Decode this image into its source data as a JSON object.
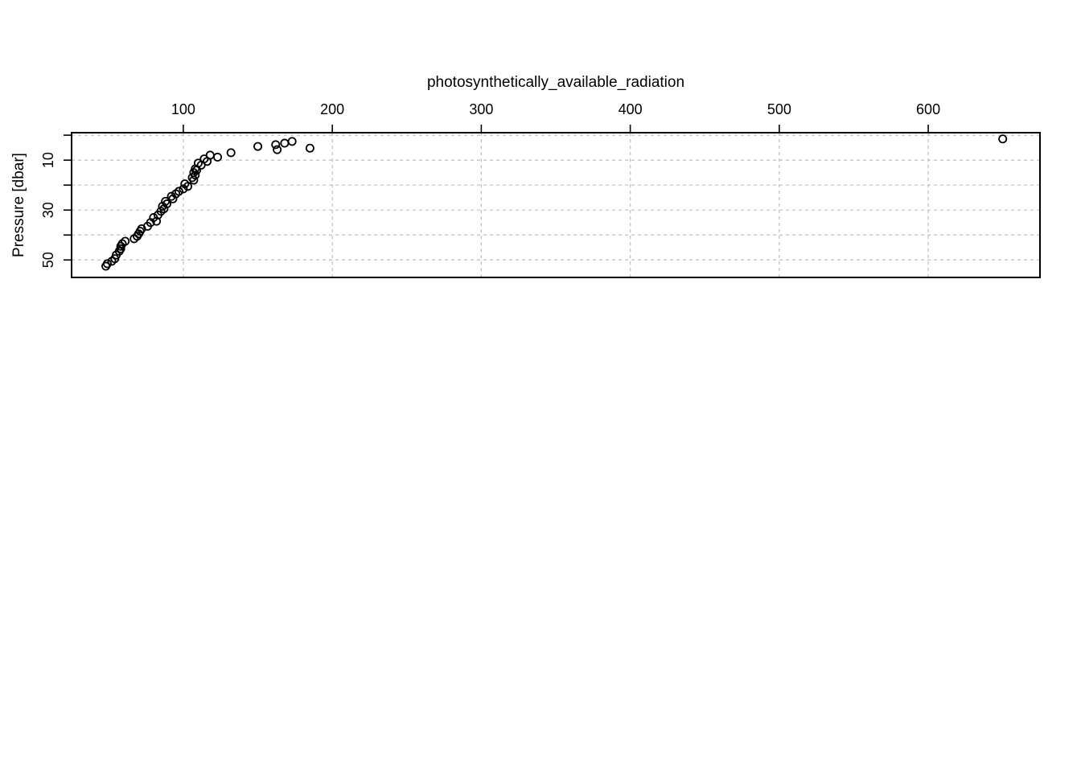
{
  "chart_data": {
    "type": "scatter",
    "title": "",
    "xlabel": "photosynthetically_available_radiation",
    "ylabel": "Pressure [dbar]",
    "x_axis_position": "top",
    "y_axis_inverted": true,
    "xlim": [
      25,
      675
    ],
    "ylim": [
      57,
      -1
    ],
    "x_ticks": [
      100,
      200,
      300,
      400,
      500,
      600
    ],
    "y_ticks": [
      10,
      30,
      50
    ],
    "x_grid": [
      100,
      200,
      300,
      400,
      500,
      600
    ],
    "y_grid": [
      0,
      10,
      20,
      30,
      40,
      50
    ],
    "grid": true,
    "marker": "open-circle",
    "x": [
      650,
      173,
      168,
      162,
      150,
      185,
      163,
      132,
      118,
      123,
      114,
      116,
      110,
      112,
      108,
      109,
      107,
      108,
      106,
      107,
      101,
      103,
      100,
      97,
      95,
      92,
      93,
      88,
      89,
      86,
      87,
      85,
      83,
      80,
      82,
      78,
      76,
      72,
      71,
      70,
      69,
      67,
      61,
      59,
      58,
      58,
      57,
      55,
      54,
      52,
      49,
      48
    ],
    "y": [
      1.5,
      2.5,
      3.2,
      3.8,
      4.5,
      5.2,
      5.8,
      7.0,
      8.0,
      8.8,
      9.5,
      10.5,
      11.2,
      12.0,
      13.5,
      14.0,
      15.0,
      16.0,
      17.0,
      18.0,
      19.5,
      20.5,
      21.5,
      22.5,
      23.5,
      24.5,
      25.5,
      26.5,
      27.5,
      28.5,
      29.5,
      30.5,
      32.0,
      33.0,
      34.5,
      35.0,
      36.5,
      37.5,
      38.5,
      39.5,
      40.5,
      41.5,
      42.5,
      43.5,
      44.5,
      45.5,
      46.5,
      48.0,
      49.5,
      50.5,
      51.5,
      52.5
    ]
  }
}
